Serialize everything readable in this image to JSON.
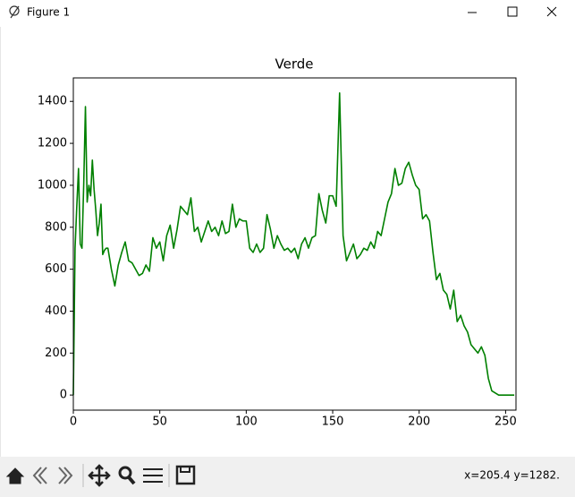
{
  "window": {
    "title": "Figure 1"
  },
  "status": "x=205.4 y=1282.",
  "chart_data": {
    "type": "line",
    "title": "Verde",
    "color": "#008000",
    "x": [
      0,
      1,
      2,
      3,
      4,
      5,
      6,
      7,
      8,
      9,
      10,
      11,
      12,
      13,
      14,
      15,
      16,
      17,
      18,
      19,
      20,
      22,
      24,
      26,
      28,
      30,
      32,
      34,
      36,
      38,
      40,
      42,
      44,
      46,
      48,
      50,
      52,
      54,
      56,
      58,
      60,
      62,
      64,
      66,
      68,
      70,
      72,
      74,
      76,
      78,
      80,
      82,
      84,
      86,
      88,
      90,
      92,
      94,
      96,
      98,
      100,
      102,
      104,
      106,
      108,
      110,
      112,
      114,
      116,
      118,
      120,
      122,
      124,
      126,
      128,
      130,
      132,
      134,
      136,
      138,
      140,
      142,
      144,
      146,
      148,
      150,
      152,
      154,
      156,
      158,
      160,
      162,
      164,
      166,
      168,
      170,
      172,
      174,
      176,
      178,
      180,
      182,
      184,
      186,
      188,
      190,
      192,
      194,
      196,
      198,
      200,
      202,
      204,
      206,
      208,
      210,
      212,
      214,
      216,
      218,
      220,
      222,
      224,
      226,
      228,
      230,
      232,
      234,
      236,
      238,
      240,
      242,
      244,
      246,
      248,
      250,
      252,
      254,
      255
    ],
    "values": [
      0,
      700,
      900,
      1080,
      720,
      700,
      1000,
      1375,
      920,
      1000,
      950,
      1120,
      980,
      880,
      760,
      820,
      910,
      670,
      690,
      700,
      700,
      600,
      520,
      620,
      680,
      730,
      640,
      630,
      600,
      570,
      580,
      620,
      590,
      750,
      700,
      730,
      640,
      760,
      810,
      700,
      790,
      900,
      880,
      860,
      940,
      780,
      800,
      730,
      780,
      830,
      780,
      800,
      760,
      830,
      770,
      780,
      910,
      800,
      840,
      830,
      830,
      700,
      680,
      720,
      680,
      700,
      860,
      790,
      700,
      760,
      720,
      690,
      700,
      680,
      700,
      650,
      720,
      750,
      700,
      750,
      760,
      960,
      880,
      820,
      950,
      950,
      900,
      1440,
      760,
      640,
      680,
      720,
      650,
      670,
      700,
      690,
      730,
      700,
      780,
      760,
      840,
      920,
      960,
      1080,
      1000,
      1010,
      1080,
      1110,
      1050,
      1000,
      980,
      840,
      860,
      830,
      680,
      550,
      580,
      500,
      480,
      410,
      500,
      350,
      380,
      330,
      300,
      240,
      220,
      200,
      230,
      190,
      80,
      20,
      10,
      0,
      0,
      0,
      0,
      0,
      0
    ],
    "xlim": [
      0,
      256
    ],
    "ylim": [
      -72,
      1512
    ],
    "xticks": [
      0,
      50,
      100,
      150,
      200,
      250
    ],
    "yticks": [
      0,
      200,
      400,
      600,
      800,
      1000,
      1200,
      1400
    ]
  }
}
